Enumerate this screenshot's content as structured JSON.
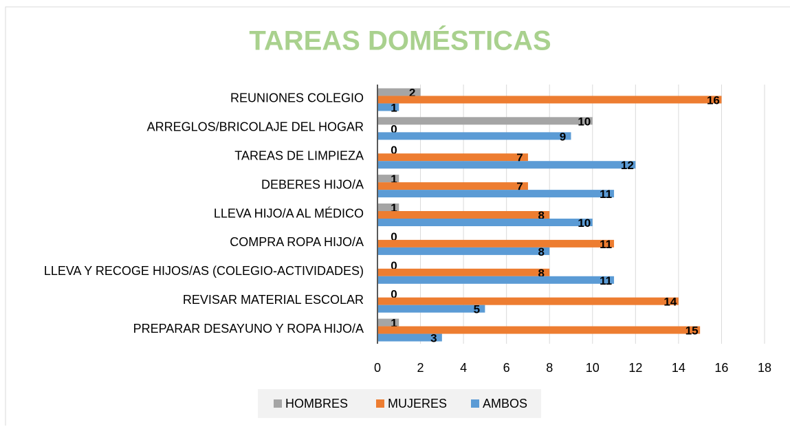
{
  "chart_data": {
    "type": "bar",
    "orientation": "horizontal",
    "title": "TAREAS DOMÉSTICAS",
    "categories": [
      "REUNIONES COLEGIO",
      "ARREGLOS/BRICOLAJE DEL HOGAR",
      "TAREAS DE LIMPIEZA",
      "DEBERES HIJO/A",
      "LLEVA HIJO/A AL MÉDICO",
      "COMPRA ROPA HIJO/A",
      "LLEVA Y RECOGE HIJOS/AS (COLEGIO-ACTIVIDADES)",
      "REVISAR MATERIAL ESCOLAR",
      "PREPARAR DESAYUNO Y ROPA HIJO/A"
    ],
    "series": [
      {
        "name": "HOMBRES",
        "color": "#a5a5a5",
        "values": [
          2,
          10,
          0,
          1,
          1,
          0,
          0,
          0,
          1
        ]
      },
      {
        "name": "MUJERES",
        "color": "#ed7d31",
        "values": [
          16,
          0,
          7,
          7,
          8,
          11,
          8,
          14,
          15
        ]
      },
      {
        "name": "AMBOS",
        "color": "#5b9bd5",
        "values": [
          1,
          9,
          12,
          11,
          10,
          8,
          11,
          5,
          3
        ]
      }
    ],
    "xlim": [
      0,
      18
    ],
    "xticks": [
      0,
      2,
      4,
      6,
      8,
      10,
      12,
      14,
      16,
      18
    ],
    "grid": true,
    "legend": "bottom"
  }
}
